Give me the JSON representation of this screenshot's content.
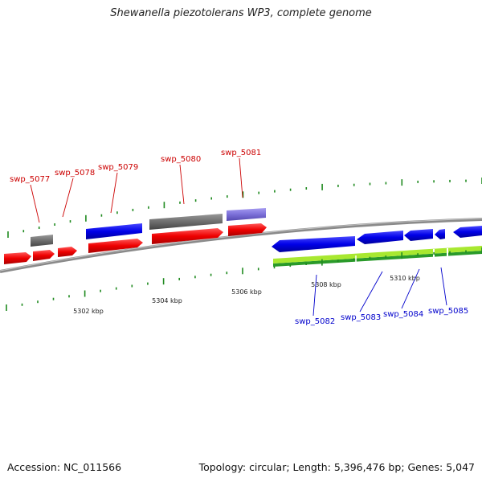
{
  "title": "Shewanella piezotolerans WP3, complete genome",
  "footer": {
    "accession_label": "Accession:",
    "accession": "NC_011566",
    "topology_label": "Topology:",
    "topology": "circular",
    "length_label": "Length:",
    "length": "5,396,476 bp",
    "genes_label": "Genes:",
    "genes": "5,047"
  },
  "colors": {
    "forward_gene": "#e8001c",
    "reverse_gene": "#0000e0",
    "gray_feature": "#6e6e6e",
    "purple_feature": "#7b6fd8",
    "forward_label": "#cc0000",
    "reverse_label": "#0000cc",
    "gc_light": "#a8e830",
    "gc_dark": "#2a9a2a",
    "backbone": "#8a8a8a",
    "tick": "#1f8a1f"
  },
  "scale": [
    "5302 kbp",
    "5304 kbp",
    "5306 kbp",
    "5308 kbp",
    "5310 kbp"
  ],
  "gene_labels_forward": [
    "swp_5077",
    "swp_5078",
    "swp_5079",
    "swp_5080",
    "swp_5081"
  ],
  "gene_labels_reverse": [
    "swp_5082",
    "swp_5083",
    "swp_5084",
    "swp_5085"
  ]
}
